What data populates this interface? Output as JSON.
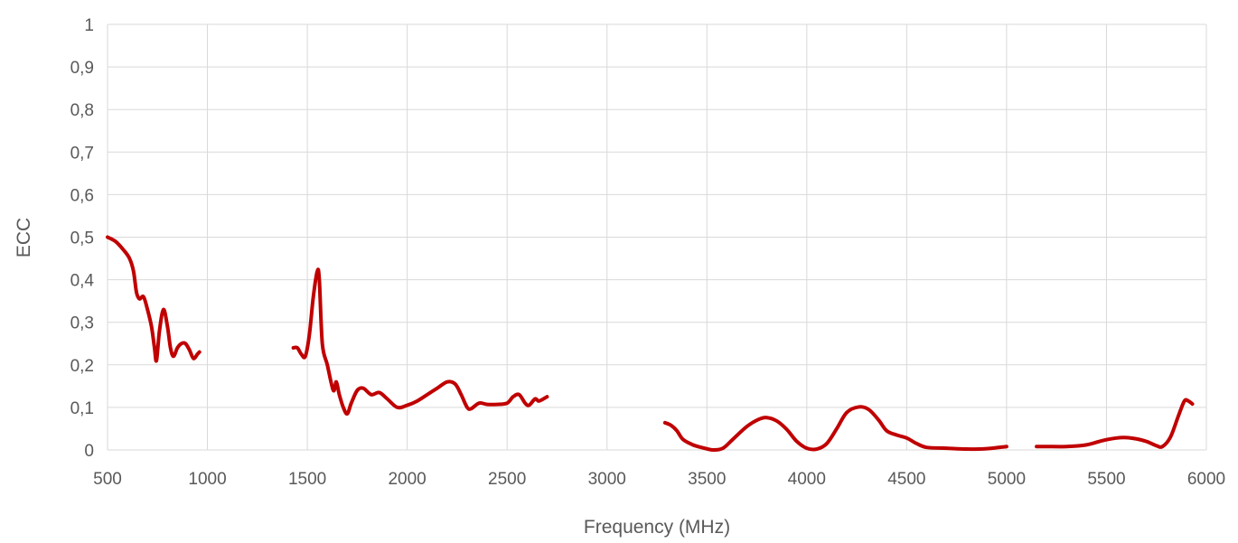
{
  "chart_data": {
    "type": "line",
    "title": "",
    "xlabel": "Frequency (MHz)",
    "ylabel": "ECC",
    "xlim": [
      500,
      6000
    ],
    "ylim": [
      0,
      1
    ],
    "x_ticks": [
      "500",
      "1000",
      "1500",
      "2000",
      "2500",
      "3000",
      "3500",
      "4000",
      "4500",
      "5000",
      "5500",
      "6000"
    ],
    "y_ticks": [
      "0",
      "0,1",
      "0,2",
      "0,3",
      "0,4",
      "0,5",
      "0,6",
      "0,7",
      "0,8",
      "0,9",
      "1"
    ],
    "grid": true,
    "legend": "none",
    "color": "#c00000",
    "series": [
      {
        "points": [
          [
            500,
            0.5
          ],
          [
            540,
            0.49
          ],
          [
            580,
            0.47
          ],
          [
            610,
            0.45
          ],
          [
            630,
            0.42
          ],
          [
            645,
            0.37
          ],
          [
            660,
            0.355
          ],
          [
            680,
            0.36
          ],
          [
            700,
            0.33
          ],
          [
            720,
            0.29
          ],
          [
            735,
            0.24
          ],
          [
            745,
            0.21
          ],
          [
            760,
            0.28
          ],
          [
            780,
            0.33
          ],
          [
            800,
            0.29
          ],
          [
            815,
            0.24
          ],
          [
            830,
            0.22
          ],
          [
            850,
            0.24
          ],
          [
            870,
            0.25
          ],
          [
            890,
            0.25
          ],
          [
            910,
            0.235
          ],
          [
            930,
            0.215
          ],
          [
            950,
            0.225
          ],
          [
            960,
            0.23
          ]
        ]
      },
      {
        "points": [
          [
            1430,
            0.24
          ],
          [
            1450,
            0.24
          ],
          [
            1470,
            0.225
          ],
          [
            1490,
            0.22
          ],
          [
            1510,
            0.27
          ],
          [
            1530,
            0.36
          ],
          [
            1550,
            0.42
          ],
          [
            1560,
            0.4
          ],
          [
            1575,
            0.25
          ],
          [
            1600,
            0.2
          ],
          [
            1630,
            0.14
          ],
          [
            1645,
            0.16
          ],
          [
            1660,
            0.13
          ],
          [
            1680,
            0.1
          ],
          [
            1700,
            0.085
          ],
          [
            1720,
            0.11
          ],
          [
            1750,
            0.14
          ],
          [
            1780,
            0.145
          ],
          [
            1820,
            0.13
          ],
          [
            1860,
            0.135
          ],
          [
            1900,
            0.12
          ],
          [
            1950,
            0.1
          ],
          [
            2000,
            0.105
          ],
          [
            2050,
            0.115
          ],
          [
            2100,
            0.13
          ],
          [
            2150,
            0.145
          ],
          [
            2200,
            0.16
          ],
          [
            2240,
            0.155
          ],
          [
            2270,
            0.13
          ],
          [
            2300,
            0.1
          ],
          [
            2320,
            0.097
          ],
          [
            2360,
            0.11
          ],
          [
            2400,
            0.107
          ],
          [
            2450,
            0.107
          ],
          [
            2500,
            0.11
          ],
          [
            2530,
            0.125
          ],
          [
            2560,
            0.13
          ],
          [
            2590,
            0.11
          ],
          [
            2610,
            0.105
          ],
          [
            2640,
            0.12
          ],
          [
            2660,
            0.115
          ],
          [
            2700,
            0.125
          ]
        ]
      },
      {
        "points": [
          [
            3290,
            0.064
          ],
          [
            3320,
            0.058
          ],
          [
            3350,
            0.045
          ],
          [
            3380,
            0.025
          ],
          [
            3430,
            0.012
          ],
          [
            3480,
            0.005
          ],
          [
            3530,
            0.0
          ],
          [
            3580,
            0.004
          ],
          [
            3630,
            0.025
          ],
          [
            3700,
            0.055
          ],
          [
            3760,
            0.072
          ],
          [
            3800,
            0.076
          ],
          [
            3850,
            0.068
          ],
          [
            3900,
            0.048
          ],
          [
            3950,
            0.02
          ],
          [
            4000,
            0.004
          ],
          [
            4050,
            0.002
          ],
          [
            4100,
            0.015
          ],
          [
            4150,
            0.05
          ],
          [
            4200,
            0.088
          ],
          [
            4260,
            0.101
          ],
          [
            4310,
            0.095
          ],
          [
            4360,
            0.07
          ],
          [
            4400,
            0.045
          ],
          [
            4450,
            0.035
          ],
          [
            4500,
            0.028
          ],
          [
            4550,
            0.015
          ],
          [
            4600,
            0.006
          ],
          [
            4700,
            0.004
          ],
          [
            4800,
            0.002
          ],
          [
            4900,
            0.003
          ],
          [
            5000,
            0.008
          ]
        ]
      },
      {
        "points": [
          [
            5150,
            0.008
          ],
          [
            5200,
            0.008
          ],
          [
            5300,
            0.008
          ],
          [
            5400,
            0.012
          ],
          [
            5480,
            0.022
          ],
          [
            5550,
            0.028
          ],
          [
            5600,
            0.029
          ],
          [
            5650,
            0.026
          ],
          [
            5700,
            0.02
          ],
          [
            5750,
            0.01
          ],
          [
            5780,
            0.008
          ],
          [
            5820,
            0.03
          ],
          [
            5860,
            0.08
          ],
          [
            5890,
            0.115
          ],
          [
            5910,
            0.115
          ],
          [
            5930,
            0.108
          ]
        ]
      }
    ]
  }
}
